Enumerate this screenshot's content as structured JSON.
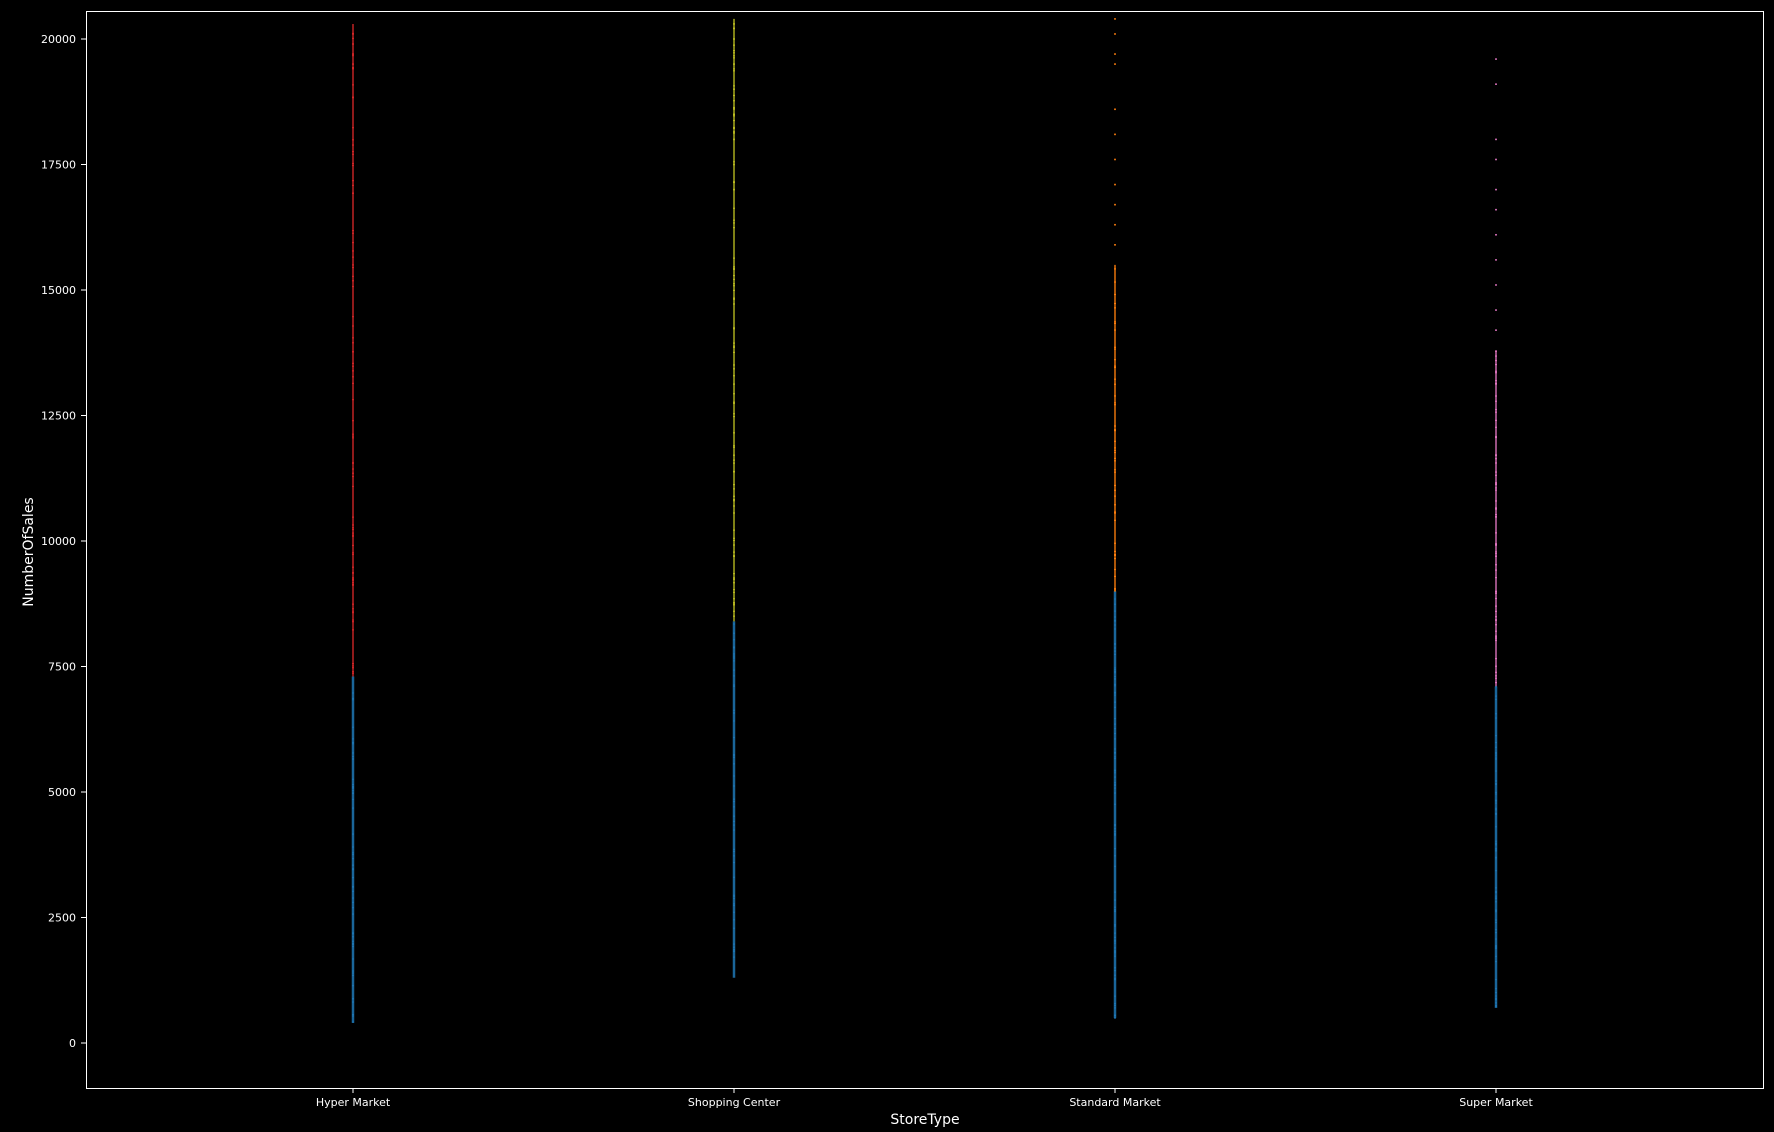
{
  "chart_data": {
    "type": "scatter",
    "title": "",
    "xlabel": "StoreType",
    "ylabel": "NumberOfSales",
    "categories": [
      "Hyper Market",
      "Shopping Center",
      "Standard Market",
      "Super Market"
    ],
    "ylim": [
      -900,
      20550
    ],
    "yticks": [
      0,
      2500,
      5000,
      7500,
      10000,
      12500,
      15000,
      17500,
      20000
    ],
    "grid": false,
    "legend": "none",
    "background": "#000000",
    "axis_color": "#ffffff",
    "series": [
      {
        "category": "Hyper Market",
        "blue_range": [
          400,
          7300
        ],
        "colored_range": [
          7300,
          20300
        ],
        "outliers": [
          19500,
          19700,
          19900,
          20100
        ],
        "low_color": "#1f77b4",
        "high_color": "#d62728"
      },
      {
        "category": "Shopping Center",
        "blue_range": [
          1300,
          8400
        ],
        "colored_range": [
          8400,
          20400
        ],
        "outliers": [
          17000,
          17500,
          18000,
          18500,
          19000,
          19500,
          20000,
          20300
        ],
        "low_color": "#1f77b4",
        "high_color": "#bcbd22"
      },
      {
        "category": "Standard Market",
        "blue_range": [
          500,
          9000
        ],
        "colored_range": [
          9000,
          15500
        ],
        "outliers": [
          15900,
          16300,
          16700,
          17100,
          17600,
          18100,
          18600,
          19500,
          19700,
          20100,
          20400
        ],
        "low_color": "#1f77b4",
        "high_color": "#ff7f0e"
      },
      {
        "category": "Super Market",
        "blue_range": [
          700,
          7100
        ],
        "colored_range": [
          7100,
          13800
        ],
        "outliers": [
          14200,
          14600,
          15100,
          15600,
          16100,
          16600,
          17000,
          17600,
          18000,
          19100,
          19600
        ],
        "low_color": "#1f77b4",
        "high_color": "#e377c2"
      }
    ]
  }
}
